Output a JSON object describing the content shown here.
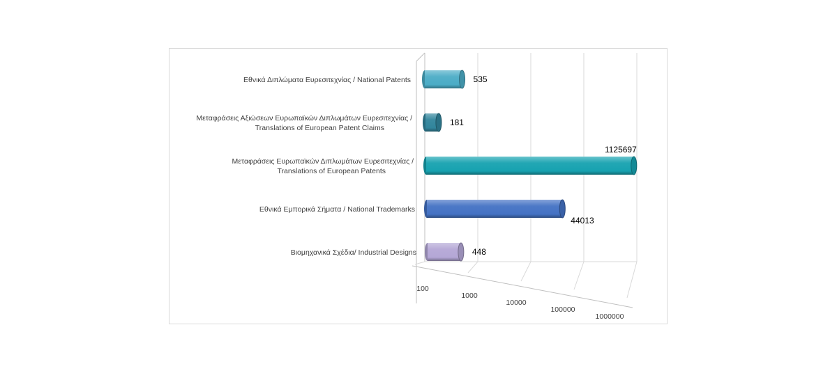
{
  "chart_data": {
    "type": "bar",
    "orientation": "horizontal",
    "style": "3d-cylinder",
    "scale": "log",
    "xlim": [
      100,
      1000000
    ],
    "x_ticks": [
      "100",
      "1000",
      "10000",
      "100000",
      "1000000"
    ],
    "grid": true,
    "legend": "none",
    "categories": [
      [
        "Εθνικά Διπλώματα Ευρεσιτεχνίας / National Patents"
      ],
      [
        "Μεταφράσεις Αξιώσεων Ευρωπαϊκών Διπλωμάτων Ευρεσιτεχνίας /",
        "Translations of European Patent Claims"
      ],
      [
        "Μεταφράσεις Ευρωπαϊκών Διπλωμάτων Ευρεσιτεχνίας /",
        "Translations of European Patents"
      ],
      [
        "Εθνικά Εμπορικά Σήματα / National Trademarks"
      ],
      [
        "Βιομηχανικά Σχέδια/ Industrial Designs"
      ]
    ],
    "values": [
      535,
      181,
      1125697,
      44013,
      448
    ],
    "value_labels": [
      "535",
      "181",
      "1125697",
      "44013",
      "448"
    ],
    "colors": [
      "#4bacc6",
      "#31859c",
      "#17a2b0",
      "#4472c4",
      "#b4a7d6"
    ]
  }
}
